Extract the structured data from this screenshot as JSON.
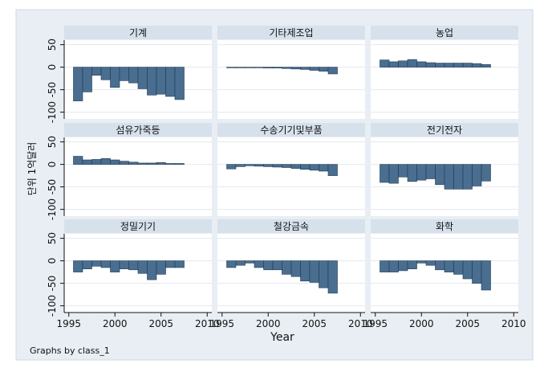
{
  "chart_data": {
    "type": "bar",
    "xlabel": "Year",
    "ylabel": "단위 1억달러",
    "note": "Graphs by class_1",
    "x_ticks": [
      "1995",
      "2000",
      "2005",
      "2010"
    ],
    "y_ticks": [
      "50",
      "0",
      "-50",
      "-100"
    ],
    "ylim": [
      -115,
      60
    ],
    "xlim": [
      1994.5,
      2010.5
    ],
    "grid": true,
    "colors": {
      "bar": "#4a6e8f",
      "bar_edge": "#1f3a55",
      "panel_header": "#d6e1ec",
      "plot_bg": "#ffffff",
      "outer_bg": "#e8eef4",
      "grid": "#e3e9ef"
    },
    "panels": [
      {
        "title": "기계",
        "years": [
          1996,
          1997,
          1998,
          1999,
          2000,
          2001,
          2002,
          2003,
          2004,
          2005,
          2006,
          2007
        ],
        "values": [
          -75,
          -55,
          -18,
          -28,
          -45,
          -30,
          -35,
          -48,
          -62,
          -60,
          -65,
          -72
        ]
      },
      {
        "title": "기타제조업",
        "years": [
          1996,
          1997,
          1998,
          1999,
          2000,
          2001,
          2002,
          2003,
          2004,
          2005,
          2006,
          2007
        ],
        "values": [
          -1,
          -1,
          0,
          -1,
          -2,
          -2,
          -3,
          -4,
          -5,
          -7,
          -9,
          -15
        ]
      },
      {
        "title": "농업",
        "years": [
          1996,
          1997,
          1998,
          1999,
          2000,
          2001,
          2002,
          2003,
          2004,
          2005,
          2006,
          2007
        ],
        "values": [
          16,
          12,
          14,
          17,
          12,
          10,
          9,
          9,
          9,
          9,
          8,
          6
        ]
      },
      {
        "title": "섬유가죽등",
        "years": [
          1996,
          1997,
          1998,
          1999,
          2000,
          2001,
          2002,
          2003,
          2004,
          2005,
          2006,
          2007
        ],
        "values": [
          18,
          10,
          11,
          13,
          10,
          7,
          5,
          3,
          3,
          4,
          2,
          2
        ]
      },
      {
        "title": "수송기기및부품",
        "years": [
          1996,
          1997,
          1998,
          1999,
          2000,
          2001,
          2002,
          2003,
          2004,
          2005,
          2006,
          2007
        ],
        "values": [
          -10,
          -5,
          -3,
          -4,
          -5,
          -6,
          -7,
          -9,
          -11,
          -13,
          -15,
          -25
        ]
      },
      {
        "title": "전기전자",
        "years": [
          1996,
          1997,
          1998,
          1999,
          2000,
          2001,
          2002,
          2003,
          2004,
          2005,
          2006,
          2007
        ],
        "values": [
          -40,
          -42,
          -28,
          -38,
          -35,
          -32,
          -45,
          -55,
          -55,
          -55,
          -48,
          -37
        ]
      },
      {
        "title": "정밀기기",
        "years": [
          1996,
          1997,
          1998,
          1999,
          2000,
          2001,
          2002,
          2003,
          2004,
          2005,
          2006,
          2007
        ],
        "values": [
          -25,
          -18,
          -12,
          -15,
          -25,
          -18,
          -20,
          -28,
          -42,
          -30,
          -15,
          -15
        ]
      },
      {
        "title": "철강금속",
        "years": [
          1996,
          1997,
          1998,
          1999,
          2000,
          2001,
          2002,
          2003,
          2004,
          2005,
          2006,
          2007
        ],
        "values": [
          -15,
          -10,
          -5,
          -15,
          -20,
          -20,
          -30,
          -35,
          -45,
          -48,
          -60,
          -72
        ]
      },
      {
        "title": "화학",
        "years": [
          1996,
          1997,
          1998,
          1999,
          2000,
          2001,
          2002,
          2003,
          2004,
          2005,
          2006,
          2007
        ],
        "values": [
          -25,
          -25,
          -22,
          -18,
          -5,
          -10,
          -20,
          -25,
          -30,
          -40,
          -50,
          -65
        ]
      }
    ]
  }
}
